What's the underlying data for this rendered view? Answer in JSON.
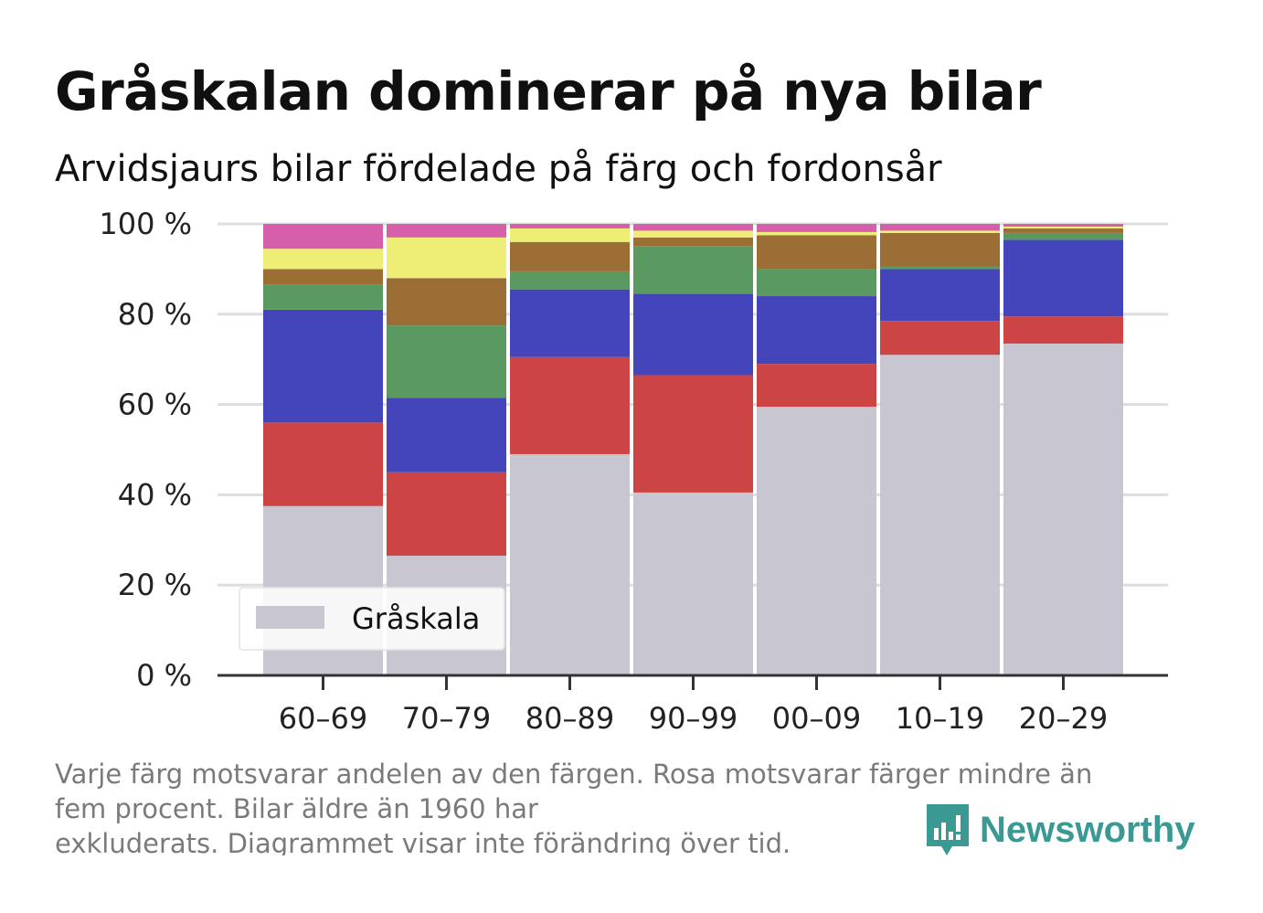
{
  "header": {
    "title": "Gråskalan dominerar på nya bilar",
    "subtitle": "Arvidsjaurs bilar fördelade på färg och fordonsår"
  },
  "chart_data": {
    "type": "bar",
    "stacked": true,
    "title": "Gråskalan dominerar på nya bilar",
    "subtitle": "Arvidsjaurs bilar fördelade på färg och fordonsår",
    "xlabel": "",
    "ylabel": "",
    "ylim": [
      0,
      100
    ],
    "yticks": [
      "0 %",
      "20 %",
      "40 %",
      "60 %",
      "80 %",
      "100 %"
    ],
    "categories": [
      "60–69",
      "70–79",
      "80–89",
      "90–99",
      "00–09",
      "10–19",
      "20–29"
    ],
    "grid": true,
    "legend": {
      "position": "bottom-left",
      "entries": [
        "Gråskala"
      ]
    },
    "series": [
      {
        "name": "Gråskala",
        "color": "#c8c6d1",
        "values": [
          37.5,
          26.5,
          49,
          40.5,
          59.5,
          71,
          73.5
        ]
      },
      {
        "color": "#cc4444",
        "values": [
          18.5,
          18.5,
          21.5,
          26,
          9.5,
          7.5,
          6
        ]
      },
      {
        "color": "#4444bb",
        "values": [
          25,
          16.5,
          15,
          18,
          15,
          11.5,
          17
        ]
      },
      {
        "color": "#5a9a60",
        "values": [
          5.5,
          16,
          4,
          10.5,
          6,
          0.5,
          1.5
        ]
      },
      {
        "color": "#9a6e34",
        "values": [
          3.5,
          10.5,
          6.5,
          2,
          7.5,
          7.5,
          1
        ]
      },
      {
        "color": "#eeee77",
        "values": [
          4.5,
          9,
          3,
          1.5,
          0.7,
          0.5,
          0.4
        ]
      },
      {
        "color": "#d65fa9",
        "values": [
          5.5,
          3,
          1,
          1.5,
          1.8,
          1.5,
          0.6
        ]
      }
    ]
  },
  "footnote": {
    "lines": [
      "Varje färg motsvarar andelen av den färgen. Rosa motsvarar färger mindre än",
      "fem procent. Bilar äldre än 1960 har",
      "exkluderats. Diagrammet visar inte förändring över tid."
    ]
  },
  "brand": {
    "name": "Newsworthy",
    "icon": "newsworthy-logo-icon",
    "color": "#3a9a93"
  }
}
